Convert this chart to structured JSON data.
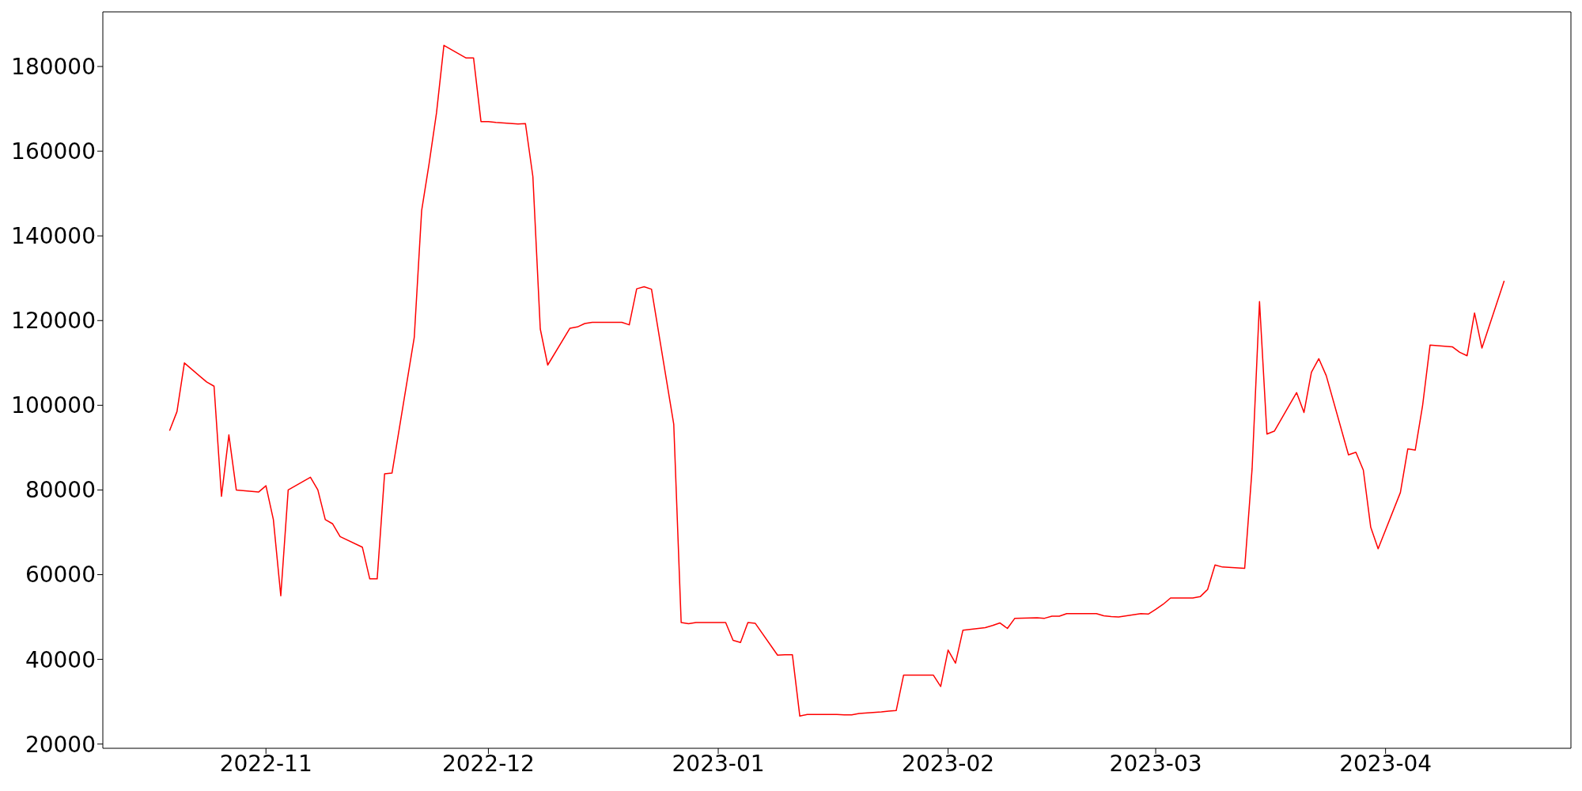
{
  "chart_data": {
    "type": "line",
    "x": [
      "2022-10-19",
      "2022-10-20",
      "2022-10-21",
      "2022-10-24",
      "2022-10-25",
      "2022-10-26",
      "2022-10-27",
      "2022-10-28",
      "2022-10-31",
      "2022-11-01",
      "2022-11-02",
      "2022-11-03",
      "2022-11-04",
      "2022-11-07",
      "2022-11-08",
      "2022-11-09",
      "2022-11-10",
      "2022-11-11",
      "2022-11-14",
      "2022-11-15",
      "2022-11-16",
      "2022-11-17",
      "2022-11-18",
      "2022-11-21",
      "2022-11-22",
      "2022-11-23",
      "2022-11-24",
      "2022-11-25",
      "2022-11-28",
      "2022-11-29",
      "2022-11-30",
      "2022-12-01",
      "2022-12-02",
      "2022-12-05",
      "2022-12-06",
      "2022-12-07",
      "2022-12-08",
      "2022-12-09",
      "2022-12-12",
      "2022-12-13",
      "2022-12-14",
      "2022-12-15",
      "2022-12-19",
      "2022-12-20",
      "2022-12-21",
      "2022-12-22",
      "2022-12-23",
      "2022-12-26",
      "2022-12-27",
      "2022-12-28",
      "2022-12-29",
      "2023-01-02",
      "2023-01-03",
      "2023-01-04",
      "2023-01-05",
      "2023-01-06",
      "2023-01-09",
      "2023-01-10",
      "2023-01-11",
      "2023-01-12",
      "2023-01-13",
      "2023-01-16",
      "2023-01-17",
      "2023-01-18",
      "2023-01-19",
      "2023-01-20",
      "2023-01-23",
      "2023-01-24",
      "2023-01-25",
      "2023-01-26",
      "2023-01-27",
      "2023-01-30",
      "2023-01-31",
      "2023-02-01",
      "2023-02-02",
      "2023-02-03",
      "2023-02-06",
      "2023-02-07",
      "2023-02-08",
      "2023-02-09",
      "2023-02-10",
      "2023-02-13",
      "2023-02-14",
      "2023-02-15",
      "2023-02-16",
      "2023-02-17",
      "2023-02-20",
      "2023-02-21",
      "2023-02-22",
      "2023-02-23",
      "2023-02-24",
      "2023-02-27",
      "2023-02-28",
      "2023-03-01",
      "2023-03-02",
      "2023-03-03",
      "2023-03-06",
      "2023-03-07",
      "2023-03-08",
      "2023-03-09",
      "2023-03-10",
      "2023-03-13",
      "2023-03-14",
      "2023-03-15",
      "2023-03-16",
      "2023-03-17",
      "2023-03-20",
      "2023-03-21",
      "2023-03-22",
      "2023-03-23",
      "2023-03-24",
      "2023-03-27",
      "2023-03-28",
      "2023-03-29",
      "2023-03-30",
      "2023-03-31",
      "2023-04-03",
      "2023-04-04",
      "2023-04-05",
      "2023-04-06",
      "2023-04-07",
      "2023-04-10",
      "2023-04-11",
      "2023-04-12",
      "2023-04-13",
      "2023-04-14",
      "2023-04-17"
    ],
    "series": [
      {
        "color": "#ff0000",
        "values": [
          94000,
          98500,
          110000,
          105500,
          104500,
          78500,
          93000,
          80000,
          79500,
          81000,
          73000,
          55000,
          80000,
          83000,
          80000,
          73000,
          72000,
          69000,
          66500,
          59000,
          59000,
          83800,
          84000,
          116000,
          146000,
          157000,
          169000,
          185000,
          182000,
          182000,
          167000,
          167000,
          166800,
          166400,
          166500,
          154000,
          118000,
          109500,
          118200,
          118500,
          119300,
          119600,
          119600,
          119000,
          127500,
          128000,
          127400,
          95500,
          48700,
          48400,
          48700,
          48700,
          44500,
          44000,
          48700,
          48500,
          41000,
          41100,
          41100,
          26600,
          27000,
          27000,
          27000,
          26900,
          26900,
          27200,
          27600,
          27800,
          27900,
          36300,
          36300,
          36300,
          33600,
          42200,
          39100,
          46900,
          47500,
          48000,
          48600,
          47300,
          49700,
          49800,
          49700,
          50200,
          50200,
          50800,
          50800,
          50800,
          50300,
          50100,
          50000,
          50800,
          50700,
          51800,
          53000,
          54500,
          54500,
          54800,
          56500,
          62300,
          61800,
          61500,
          85000,
          124500,
          93200,
          93900,
          103000,
          98300,
          107800,
          111000,
          107000,
          88300,
          88900,
          84700,
          71200,
          66100,
          79400,
          89700,
          89400,
          100000,
          114200,
          113800,
          112500,
          111700,
          121800,
          113500,
          129400
        ]
      }
    ],
    "xlim": [
      "2022-10-10",
      "2023-04-26"
    ],
    "xticks": [
      {
        "value": "2022-11-01",
        "label": "2022-11"
      },
      {
        "value": "2022-12-01",
        "label": "2022-12"
      },
      {
        "value": "2023-01-01",
        "label": "2023-01"
      },
      {
        "value": "2023-02-01",
        "label": "2023-02"
      },
      {
        "value": "2023-03-01",
        "label": "2023-03"
      },
      {
        "value": "2023-04-01",
        "label": "2023-04"
      }
    ],
    "ylim": [
      19000,
      192900
    ],
    "yticks": [
      20000,
      40000,
      60000,
      80000,
      100000,
      120000,
      140000,
      160000,
      180000
    ],
    "grid": false,
    "legend": false
  }
}
